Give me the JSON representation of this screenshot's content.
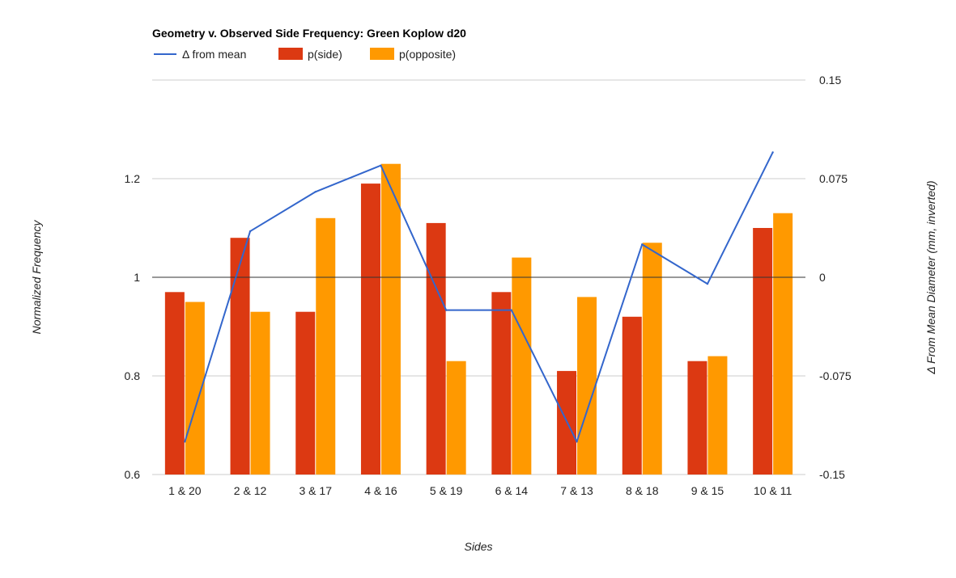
{
  "chart_data": {
    "type": "bar",
    "title": "Geometry v. Observed Side Frequency: Green Koplow d20",
    "xlabel": "Sides",
    "ylabel": "Normalized Frequency",
    "y2label": "Δ From Mean Diameter (mm, inverted)",
    "categories": [
      "1 & 20",
      "2 & 12",
      "3 & 17",
      "4 & 16",
      "5 & 19",
      "6 & 14",
      "7 & 13",
      "8 & 18",
      "9 & 15",
      "10 & 11"
    ],
    "ylim": [
      0.6,
      1.4
    ],
    "yticks": [
      "0.6",
      "0.8",
      "1",
      "1.2"
    ],
    "y2lim": [
      -0.15,
      0.15
    ],
    "y2ticks": [
      "-0.15",
      "-0.075",
      "0",
      "0.075",
      "0.15"
    ],
    "baseline": 1,
    "grid": true,
    "legend_position": "top-left",
    "series": [
      {
        "name": "p(side)",
        "type": "bar",
        "axis": "left",
        "color": "#dc3912",
        "values": [
          0.97,
          1.08,
          0.93,
          1.19,
          1.11,
          0.97,
          0.81,
          0.92,
          0.83,
          1.1
        ]
      },
      {
        "name": "p(opposite)",
        "type": "bar",
        "axis": "left",
        "color": "#ff9900",
        "values": [
          0.95,
          0.93,
          1.12,
          1.23,
          0.83,
          1.04,
          0.96,
          1.07,
          0.84,
          1.13
        ]
      },
      {
        "name": "Δ from mean",
        "type": "line",
        "axis": "right",
        "color": "#3366cc",
        "values": [
          -0.125,
          0.035,
          0.065,
          0.085,
          -0.025,
          -0.025,
          -0.125,
          0.025,
          -0.005,
          0.095
        ]
      }
    ]
  }
}
